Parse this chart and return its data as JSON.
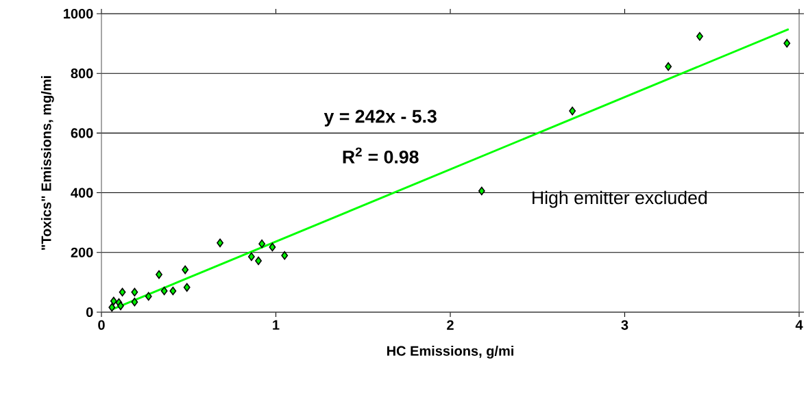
{
  "chart_data": {
    "type": "scatter",
    "xlabel": "HC Emissions, g/mi",
    "ylabel": "\"Toxics\" Emissions, mg/mi",
    "xlim": [
      0,
      4
    ],
    "xticks": [
      0,
      1,
      2,
      3,
      4
    ],
    "ylim": [
      0,
      1000
    ],
    "yticks": [
      0,
      200,
      400,
      600,
      800,
      1000
    ],
    "grid": "y",
    "marker": "diamond",
    "series": [
      {
        "color": "#00ee00",
        "x": [
          0.06,
          0.07,
          0.1,
          0.11,
          0.12,
          0.19,
          0.19,
          0.27,
          0.33,
          0.36,
          0.41,
          0.48,
          0.49,
          0.68,
          0.86,
          0.9,
          0.92,
          0.98,
          1.05,
          2.18,
          2.7,
          3.25,
          3.43,
          3.93
        ],
        "values": [
          16,
          37,
          32,
          21,
          67,
          34,
          67,
          53,
          126,
          71,
          71,
          142,
          83,
          232,
          186,
          172,
          229,
          218,
          190,
          406,
          674,
          823,
          924,
          901
        ]
      },
      {
        "type": "line",
        "color": "#00ff00",
        "x": [
          0.06,
          3.94
        ],
        "values": [
          9,
          948
        ],
        "marker": "none"
      }
    ],
    "annotations": [
      "y = 242x - 5.3",
      "R$^{2}$ = 0.98",
      "High emitter excluded"
    ]
  }
}
